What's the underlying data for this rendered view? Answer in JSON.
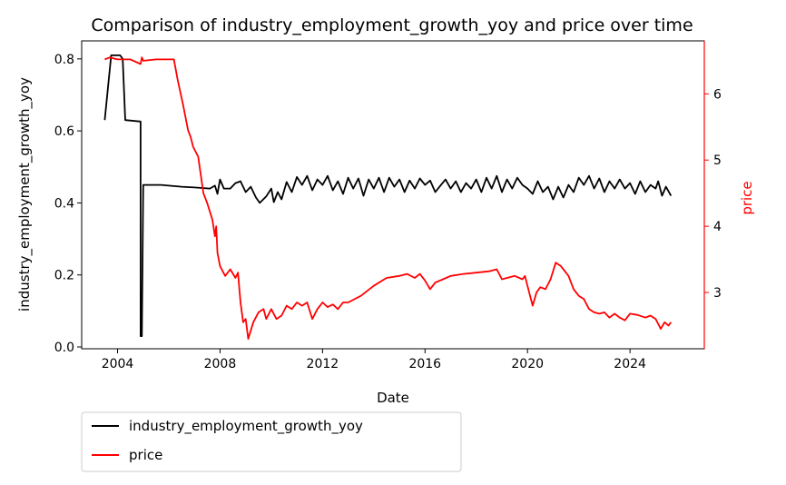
{
  "chart_data": {
    "type": "line",
    "title": "Comparison of industry_employment_growth_yoy and price over time",
    "xlabel": "Date",
    "ylabel_left": "industry_employment_growth_yoy",
    "ylabel_right": "price",
    "xlim": [
      2002.6,
      2026.9
    ],
    "ylim_left": [
      -0.005,
      0.85
    ],
    "ylim_right": [
      2.15,
      6.8
    ],
    "x_ticks": [
      2004,
      2008,
      2012,
      2016,
      2020,
      2024
    ],
    "y_ticks_left": [
      0.0,
      0.2,
      0.4,
      0.6,
      0.8
    ],
    "y_ticks_right": [
      3,
      4,
      5,
      6
    ],
    "grid": false,
    "legend_position": "below-left",
    "series": [
      {
        "name": "industry_employment_growth_yoy",
        "axis": "left",
        "color": "#000000",
        "points": [
          [
            2003.5,
            0.63
          ],
          [
            2003.75,
            0.81
          ],
          [
            2004.1,
            0.81
          ],
          [
            2004.2,
            0.8
          ],
          [
            2004.3,
            0.63
          ],
          [
            2004.9,
            0.626
          ],
          [
            2004.9,
            0.03
          ],
          [
            2004.95,
            0.03
          ],
          [
            2005.0,
            0.45
          ],
          [
            2005.7,
            0.45
          ],
          [
            2006.5,
            0.445
          ],
          [
            2007.0,
            0.443
          ],
          [
            2007.6,
            0.44
          ],
          [
            2007.8,
            0.448
          ],
          [
            2007.9,
            0.425
          ],
          [
            2008.0,
            0.465
          ],
          [
            2008.15,
            0.44
          ],
          [
            2008.4,
            0.44
          ],
          [
            2008.6,
            0.455
          ],
          [
            2008.8,
            0.46
          ],
          [
            2009.0,
            0.43
          ],
          [
            2009.2,
            0.445
          ],
          [
            2009.4,
            0.415
          ],
          [
            2009.55,
            0.4
          ],
          [
            2009.8,
            0.418
          ],
          [
            2010.0,
            0.44
          ],
          [
            2010.1,
            0.402
          ],
          [
            2010.25,
            0.43
          ],
          [
            2010.4,
            0.41
          ],
          [
            2010.6,
            0.458
          ],
          [
            2010.8,
            0.43
          ],
          [
            2011.0,
            0.472
          ],
          [
            2011.2,
            0.45
          ],
          [
            2011.4,
            0.475
          ],
          [
            2011.6,
            0.435
          ],
          [
            2011.8,
            0.465
          ],
          [
            2012.0,
            0.45
          ],
          [
            2012.2,
            0.475
          ],
          [
            2012.4,
            0.435
          ],
          [
            2012.6,
            0.46
          ],
          [
            2012.8,
            0.425
          ],
          [
            2013.0,
            0.47
          ],
          [
            2013.2,
            0.44
          ],
          [
            2013.4,
            0.468
          ],
          [
            2013.6,
            0.42
          ],
          [
            2013.8,
            0.465
          ],
          [
            2014.0,
            0.44
          ],
          [
            2014.2,
            0.47
          ],
          [
            2014.4,
            0.43
          ],
          [
            2014.6,
            0.47
          ],
          [
            2014.8,
            0.445
          ],
          [
            2015.0,
            0.465
          ],
          [
            2015.2,
            0.43
          ],
          [
            2015.4,
            0.462
          ],
          [
            2015.6,
            0.44
          ],
          [
            2015.8,
            0.468
          ],
          [
            2016.0,
            0.45
          ],
          [
            2016.2,
            0.462
          ],
          [
            2016.4,
            0.43
          ],
          [
            2016.6,
            0.448
          ],
          [
            2016.8,
            0.465
          ],
          [
            2017.0,
            0.44
          ],
          [
            2017.2,
            0.46
          ],
          [
            2017.4,
            0.43
          ],
          [
            2017.6,
            0.455
          ],
          [
            2017.8,
            0.44
          ],
          [
            2018.0,
            0.465
          ],
          [
            2018.2,
            0.43
          ],
          [
            2018.4,
            0.47
          ],
          [
            2018.6,
            0.44
          ],
          [
            2018.8,
            0.475
          ],
          [
            2019.0,
            0.43
          ],
          [
            2019.2,
            0.465
          ],
          [
            2019.4,
            0.44
          ],
          [
            2019.6,
            0.47
          ],
          [
            2019.8,
            0.45
          ],
          [
            2020.0,
            0.44
          ],
          [
            2020.2,
            0.425
          ],
          [
            2020.4,
            0.46
          ],
          [
            2020.6,
            0.43
          ],
          [
            2020.8,
            0.445
          ],
          [
            2021.0,
            0.41
          ],
          [
            2021.2,
            0.445
          ],
          [
            2021.4,
            0.415
          ],
          [
            2021.6,
            0.45
          ],
          [
            2021.8,
            0.43
          ],
          [
            2022.0,
            0.47
          ],
          [
            2022.2,
            0.45
          ],
          [
            2022.4,
            0.475
          ],
          [
            2022.6,
            0.44
          ],
          [
            2022.8,
            0.468
          ],
          [
            2023.0,
            0.43
          ],
          [
            2023.2,
            0.46
          ],
          [
            2023.4,
            0.44
          ],
          [
            2023.6,
            0.465
          ],
          [
            2023.8,
            0.44
          ],
          [
            2024.0,
            0.455
          ],
          [
            2024.2,
            0.425
          ],
          [
            2024.4,
            0.46
          ],
          [
            2024.6,
            0.43
          ],
          [
            2024.8,
            0.45
          ],
          [
            2025.0,
            0.44
          ],
          [
            2025.1,
            0.46
          ],
          [
            2025.25,
            0.42
          ],
          [
            2025.4,
            0.445
          ],
          [
            2025.6,
            0.42
          ]
        ]
      },
      {
        "name": "price",
        "axis": "right",
        "color": "#ff0000",
        "points": [
          [
            2003.5,
            6.52
          ],
          [
            2003.7,
            6.55
          ],
          [
            2004.0,
            6.52
          ],
          [
            2004.5,
            6.52
          ],
          [
            2004.9,
            6.45
          ],
          [
            2004.95,
            6.55
          ],
          [
            2005.0,
            6.5
          ],
          [
            2005.5,
            6.52
          ],
          [
            2006.0,
            6.52
          ],
          [
            2006.2,
            6.52
          ],
          [
            2006.35,
            6.2
          ],
          [
            2006.55,
            5.85
          ],
          [
            2006.75,
            5.45
          ],
          [
            2006.85,
            5.35
          ],
          [
            2006.95,
            5.2
          ],
          [
            2007.15,
            5.05
          ],
          [
            2007.35,
            4.5
          ],
          [
            2007.5,
            4.35
          ],
          [
            2007.7,
            4.1
          ],
          [
            2007.8,
            3.85
          ],
          [
            2007.85,
            4.0
          ],
          [
            2007.9,
            3.6
          ],
          [
            2008.0,
            3.4
          ],
          [
            2008.2,
            3.25
          ],
          [
            2008.4,
            3.35
          ],
          [
            2008.6,
            3.22
          ],
          [
            2008.7,
            3.3
          ],
          [
            2008.8,
            2.85
          ],
          [
            2008.9,
            2.55
          ],
          [
            2009.0,
            2.6
          ],
          [
            2009.1,
            2.3
          ],
          [
            2009.3,
            2.55
          ],
          [
            2009.5,
            2.7
          ],
          [
            2009.7,
            2.75
          ],
          [
            2009.8,
            2.6
          ],
          [
            2010.0,
            2.75
          ],
          [
            2010.2,
            2.6
          ],
          [
            2010.4,
            2.65
          ],
          [
            2010.6,
            2.8
          ],
          [
            2010.8,
            2.75
          ],
          [
            2011.0,
            2.85
          ],
          [
            2011.2,
            2.8
          ],
          [
            2011.4,
            2.85
          ],
          [
            2011.6,
            2.6
          ],
          [
            2011.8,
            2.75
          ],
          [
            2012.0,
            2.85
          ],
          [
            2012.2,
            2.78
          ],
          [
            2012.4,
            2.82
          ],
          [
            2012.6,
            2.75
          ],
          [
            2012.8,
            2.85
          ],
          [
            2013.0,
            2.85
          ],
          [
            2013.5,
            2.95
          ],
          [
            2014.0,
            3.1
          ],
          [
            2014.5,
            3.22
          ],
          [
            2015.0,
            3.25
          ],
          [
            2015.3,
            3.28
          ],
          [
            2015.6,
            3.22
          ],
          [
            2015.8,
            3.28
          ],
          [
            2016.0,
            3.18
          ],
          [
            2016.2,
            3.05
          ],
          [
            2016.4,
            3.15
          ],
          [
            2016.7,
            3.2
          ],
          [
            2017.0,
            3.25
          ],
          [
            2017.5,
            3.28
          ],
          [
            2018.0,
            3.3
          ],
          [
            2018.5,
            3.32
          ],
          [
            2018.8,
            3.35
          ],
          [
            2019.0,
            3.2
          ],
          [
            2019.5,
            3.25
          ],
          [
            2019.8,
            3.2
          ],
          [
            2019.9,
            3.25
          ],
          [
            2020.1,
            2.95
          ],
          [
            2020.2,
            2.8
          ],
          [
            2020.35,
            3.0
          ],
          [
            2020.5,
            3.08
          ],
          [
            2020.7,
            3.05
          ],
          [
            2020.9,
            3.2
          ],
          [
            2021.1,
            3.45
          ],
          [
            2021.3,
            3.4
          ],
          [
            2021.6,
            3.25
          ],
          [
            2021.8,
            3.05
          ],
          [
            2022.0,
            2.95
          ],
          [
            2022.2,
            2.9
          ],
          [
            2022.4,
            2.75
          ],
          [
            2022.6,
            2.7
          ],
          [
            2022.8,
            2.68
          ],
          [
            2023.0,
            2.7
          ],
          [
            2023.2,
            2.62
          ],
          [
            2023.4,
            2.68
          ],
          [
            2023.6,
            2.62
          ],
          [
            2023.8,
            2.58
          ],
          [
            2024.0,
            2.68
          ],
          [
            2024.3,
            2.66
          ],
          [
            2024.6,
            2.62
          ],
          [
            2024.8,
            2.65
          ],
          [
            2025.0,
            2.6
          ],
          [
            2025.2,
            2.45
          ],
          [
            2025.35,
            2.55
          ],
          [
            2025.5,
            2.5
          ],
          [
            2025.6,
            2.55
          ]
        ]
      }
    ]
  }
}
